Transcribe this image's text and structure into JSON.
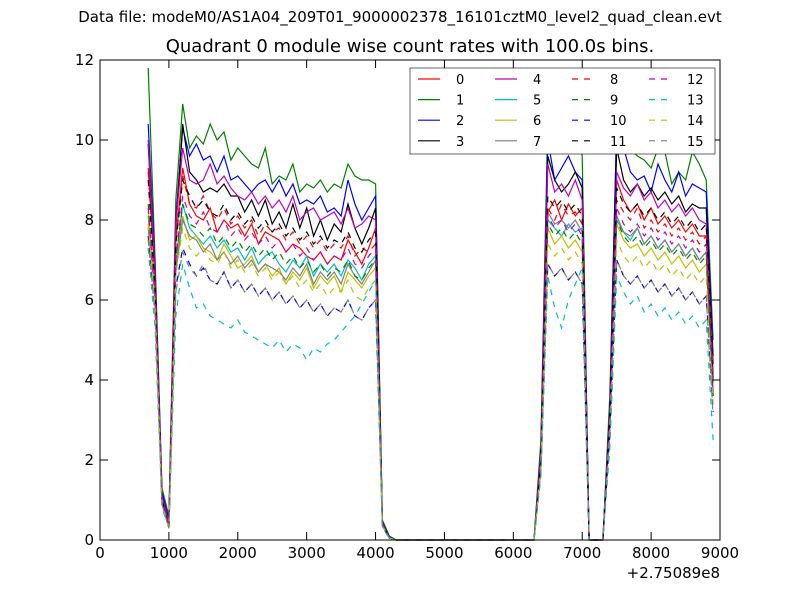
{
  "header": {
    "data_file": "Data file: modeM0/AS1A04_209T01_9000002378_16101cztM0_level2_quad_clean.evt",
    "title": "Quadrant 0 module wise count rates with 100.0s bins."
  },
  "chart_data": {
    "type": "line",
    "title": "Quadrant 0 module wise count rates with 100.0s bins.",
    "xlabel": "",
    "ylabel": "",
    "xlim": [
      0,
      9000
    ],
    "ylim": [
      0,
      12
    ],
    "x_offset_label": "+2.75089e8",
    "xticks": [
      "0",
      "1000",
      "2000",
      "3000",
      "4000",
      "5000",
      "6000",
      "7000",
      "8000",
      "9000"
    ],
    "yticks": [
      "0",
      "2",
      "4",
      "6",
      "8",
      "10",
      "12"
    ],
    "grid": false,
    "legend_position": "top-right",
    "x": [
      700,
      800,
      900,
      1000,
      1100,
      1200,
      1300,
      1400,
      1500,
      1600,
      1700,
      1800,
      1900,
      2000,
      2100,
      2200,
      2300,
      2400,
      2500,
      2600,
      2700,
      2800,
      2900,
      3000,
      3100,
      3200,
      3300,
      3400,
      3500,
      3600,
      3700,
      3800,
      3900,
      4000,
      4100,
      4200,
      4300,
      4400,
      4500,
      6300,
      6400,
      6500,
      6600,
      6700,
      6800,
      6900,
      7000,
      7100,
      7300,
      7400,
      7500,
      7600,
      7700,
      7800,
      7900,
      8000,
      8100,
      8200,
      8300,
      8400,
      8500,
      8600,
      8700,
      8800,
      8900
    ],
    "series": [
      {
        "name": "0",
        "color": "#ff0000",
        "dash": "solid",
        "values": [
          9.3,
          6.5,
          1.0,
          0.3,
          7.5,
          9.3,
          8.4,
          8.1,
          8.0,
          8.3,
          7.7,
          8.0,
          7.8,
          7.9,
          7.6,
          7.9,
          7.4,
          7.7,
          7.6,
          7.5,
          7.2,
          7.4,
          7.3,
          7.1,
          7.0,
          7.2,
          6.9,
          7.1,
          7.0,
          7.5,
          7.2,
          6.9,
          7.3,
          7.8,
          0.4,
          0.05,
          0.0,
          0.0,
          0.0,
          0.0,
          2.0,
          8.2,
          8.5,
          8.0,
          8.4,
          8.1,
          8.3,
          0.0,
          0.0,
          3.0,
          9.0,
          8.5,
          8.2,
          8.4,
          8.0,
          8.3,
          7.9,
          8.1,
          7.8,
          8.0,
          7.7,
          7.9,
          7.6,
          7.6,
          4.0
        ]
      },
      {
        "name": "1",
        "color": "#008000",
        "dash": "solid",
        "values": [
          11.8,
          7.0,
          1.3,
          0.6,
          8.5,
          10.9,
          9.8,
          10.1,
          9.9,
          10.4,
          10.0,
          10.2,
          9.5,
          9.8,
          9.6,
          9.4,
          9.3,
          9.8,
          8.9,
          9.1,
          9.0,
          9.4,
          8.7,
          8.9,
          8.8,
          9.0,
          8.7,
          8.9,
          8.8,
          9.4,
          9.1,
          9.0,
          9.0,
          8.9,
          0.5,
          0.1,
          0.0,
          0.0,
          0.0,
          0.0,
          2.5,
          10.5,
          9.7,
          9.9,
          10.2,
          10.4,
          9.6,
          0.0,
          0.0,
          3.6,
          10.3,
          10.2,
          9.8,
          9.6,
          9.5,
          9.3,
          9.8,
          9.7,
          8.9,
          9.2,
          9.0,
          9.7,
          9.4,
          9.0,
          5.0
        ]
      },
      {
        "name": "2",
        "color": "#0000ff",
        "dash": "solid",
        "values": [
          10.4,
          6.8,
          1.2,
          0.5,
          8.0,
          10.3,
          9.6,
          9.9,
          9.5,
          9.6,
          9.2,
          9.6,
          9.0,
          9.1,
          8.9,
          8.7,
          8.9,
          9.0,
          8.7,
          9.0,
          8.6,
          8.9,
          8.4,
          8.5,
          8.4,
          8.6,
          8.2,
          8.3,
          8.1,
          9.0,
          8.4,
          8.0,
          8.3,
          8.6,
          0.45,
          0.08,
          0.0,
          0.0,
          0.0,
          0.0,
          2.3,
          10.0,
          9.0,
          9.3,
          9.6,
          9.2,
          9.0,
          0.0,
          0.0,
          3.3,
          10.4,
          9.8,
          9.2,
          9.0,
          9.1,
          8.7,
          9.4,
          9.0,
          8.7,
          9.2,
          8.6,
          8.9,
          8.8,
          8.7,
          4.6
        ]
      },
      {
        "name": "3",
        "color": "#000000",
        "dash": "solid",
        "values": [
          9.9,
          6.6,
          1.1,
          0.4,
          7.8,
          10.4,
          9.2,
          9.0,
          8.7,
          8.8,
          8.7,
          8.9,
          8.6,
          8.6,
          8.2,
          8.5,
          8.1,
          8.5,
          7.9,
          8.2,
          7.8,
          8.4,
          7.8,
          8.3,
          7.6,
          8.0,
          7.5,
          7.9,
          7.7,
          8.4,
          7.8,
          7.4,
          7.8,
          8.3,
          0.42,
          0.06,
          0.0,
          0.0,
          0.0,
          0.0,
          2.2,
          9.6,
          9.0,
          8.7,
          8.9,
          9.2,
          8.8,
          0.0,
          0.0,
          3.2,
          9.8,
          9.0,
          8.7,
          8.9,
          8.6,
          8.8,
          8.5,
          8.7,
          8.4,
          8.6,
          8.2,
          8.4,
          8.3,
          8.3,
          4.4
        ]
      },
      {
        "name": "4",
        "color": "#bf00bf",
        "dash": "solid",
        "values": [
          10.0,
          6.6,
          1.1,
          0.4,
          7.9,
          9.8,
          9.0,
          8.9,
          9.0,
          9.4,
          8.9,
          9.1,
          8.8,
          8.6,
          8.5,
          8.7,
          8.4,
          8.6,
          8.3,
          8.5,
          8.2,
          8.6,
          8.0,
          8.2,
          8.3,
          8.0,
          8.1,
          8.2,
          7.9,
          8.3,
          7.8,
          7.9,
          8.1,
          8.0,
          0.42,
          0.06,
          0.0,
          0.0,
          0.0,
          0.0,
          2.2,
          9.4,
          8.7,
          8.9,
          8.6,
          9.0,
          8.5,
          0.0,
          0.0,
          3.2,
          9.2,
          8.8,
          8.6,
          8.9,
          8.5,
          8.7,
          8.3,
          8.5,
          8.2,
          8.4,
          8.1,
          8.3,
          8.0,
          7.9,
          4.2
        ]
      },
      {
        "name": "5",
        "color": "#00bfbf",
        "dash": "solid",
        "values": [
          8.1,
          6.0,
          0.9,
          0.3,
          6.9,
          8.4,
          7.8,
          7.6,
          7.4,
          7.6,
          7.3,
          7.5,
          7.2,
          7.3,
          7.0,
          7.3,
          6.9,
          7.1,
          7.2,
          6.9,
          6.7,
          7.0,
          6.8,
          7.1,
          6.6,
          6.9,
          6.7,
          6.9,
          6.6,
          7.0,
          6.8,
          6.5,
          6.9,
          7.1,
          0.38,
          0.05,
          0.0,
          0.0,
          0.0,
          0.0,
          1.9,
          8.0,
          7.8,
          7.6,
          7.9,
          7.7,
          7.8,
          0.0,
          0.0,
          2.9,
          8.0,
          7.7,
          7.5,
          7.8,
          7.4,
          7.6,
          7.3,
          7.5,
          7.2,
          7.4,
          7.1,
          7.3,
          7.0,
          7.2,
          3.6
        ]
      },
      {
        "name": "6",
        "color": "#bfbf00",
        "dash": "solid",
        "values": [
          8.2,
          6.0,
          0.9,
          0.3,
          6.8,
          8.1,
          7.5,
          7.6,
          7.3,
          7.2,
          7.0,
          7.4,
          7.1,
          6.8,
          6.9,
          7.1,
          6.7,
          6.9,
          6.6,
          6.8,
          6.4,
          6.7,
          6.5,
          6.8,
          6.3,
          6.6,
          6.4,
          6.6,
          6.2,
          6.7,
          6.5,
          6.3,
          6.6,
          6.8,
          0.36,
          0.05,
          0.0,
          0.0,
          0.0,
          0.0,
          1.9,
          7.8,
          7.4,
          7.6,
          7.3,
          7.5,
          7.2,
          0.0,
          0.0,
          2.8,
          7.9,
          7.5,
          7.3,
          7.4,
          7.1,
          7.3,
          7.0,
          7.2,
          6.9,
          7.1,
          6.8,
          7.0,
          6.7,
          6.9,
          3.6
        ]
      },
      {
        "name": "7",
        "color": "#7f7f7f",
        "dash": "solid",
        "values": [
          7.8,
          6.0,
          0.9,
          0.3,
          6.7,
          8.0,
          7.6,
          7.5,
          7.2,
          7.4,
          7.0,
          7.2,
          6.9,
          7.1,
          6.8,
          7.0,
          6.7,
          6.9,
          6.8,
          6.7,
          6.5,
          6.8,
          6.6,
          6.9,
          6.4,
          6.7,
          6.5,
          6.7,
          6.4,
          6.9,
          6.6,
          6.4,
          6.7,
          7.0,
          0.37,
          0.05,
          0.0,
          0.0,
          0.0,
          0.0,
          1.9,
          8.2,
          7.9,
          8.0,
          7.8,
          8.0,
          7.7,
          0.0,
          0.0,
          2.9,
          8.1,
          7.7,
          7.6,
          7.8,
          7.4,
          7.6,
          7.3,
          7.5,
          7.2,
          7.4,
          7.1,
          7.3,
          7.0,
          7.2,
          3.7
        ]
      },
      {
        "name": "8",
        "color": "#ff0000",
        "dash": "dashed",
        "values": [
          9.2,
          6.4,
          1.0,
          0.3,
          7.4,
          9.1,
          8.4,
          8.3,
          8.6,
          8.2,
          8.0,
          8.3,
          7.9,
          8.1,
          7.8,
          8.0,
          7.6,
          7.9,
          7.7,
          7.8,
          7.5,
          7.7,
          7.4,
          7.6,
          7.3,
          7.5,
          7.2,
          7.4,
          7.3,
          7.6,
          7.1,
          7.3,
          7.2,
          7.4,
          0.4,
          0.05,
          0.0,
          0.0,
          0.0,
          0.0,
          2.0,
          8.3,
          8.0,
          8.4,
          8.1,
          8.2,
          7.9,
          0.0,
          0.0,
          3.0,
          8.5,
          8.2,
          8.0,
          8.3,
          7.8,
          8.0,
          7.7,
          7.9,
          7.6,
          7.8,
          7.5,
          7.7,
          7.4,
          7.6,
          3.9
        ]
      },
      {
        "name": "9",
        "color": "#008000",
        "dash": "dashed",
        "values": [
          8.4,
          6.1,
          1.0,
          0.3,
          7.0,
          8.4,
          7.9,
          7.8,
          7.6,
          7.8,
          7.4,
          7.6,
          7.3,
          7.5,
          7.2,
          7.4,
          7.1,
          7.3,
          7.0,
          7.2,
          6.9,
          7.1,
          6.8,
          7.0,
          6.7,
          6.9,
          6.6,
          6.8,
          6.7,
          7.0,
          6.6,
          6.5,
          6.8,
          7.0,
          0.38,
          0.05,
          0.0,
          0.0,
          0.0,
          0.0,
          1.9,
          7.9,
          7.6,
          7.8,
          7.5,
          7.7,
          7.4,
          0.0,
          0.0,
          2.9,
          8.0,
          7.6,
          7.4,
          7.6,
          7.3,
          7.5,
          7.2,
          7.4,
          7.1,
          7.3,
          7.0,
          7.2,
          6.9,
          7.1,
          3.6
        ]
      },
      {
        "name": "10",
        "color": "#0000ff",
        "dash": "dashed",
        "values": [
          7.6,
          5.7,
          0.9,
          0.3,
          6.3,
          7.3,
          6.9,
          6.6,
          6.8,
          6.5,
          6.4,
          6.7,
          6.3,
          6.5,
          6.2,
          6.4,
          6.1,
          6.3,
          6.0,
          6.2,
          5.9,
          6.1,
          5.8,
          6.0,
          5.7,
          5.9,
          5.6,
          5.8,
          5.7,
          6.0,
          5.6,
          5.5,
          5.8,
          6.0,
          0.34,
          0.05,
          0.0,
          0.0,
          0.0,
          0.0,
          1.7,
          6.9,
          6.6,
          6.8,
          6.5,
          6.7,
          6.4,
          0.0,
          0.0,
          2.6,
          7.0,
          6.6,
          6.4,
          6.6,
          6.3,
          6.5,
          6.2,
          6.4,
          6.1,
          6.3,
          6.0,
          6.2,
          5.9,
          6.1,
          3.2
        ]
      },
      {
        "name": "11",
        "color": "#000000",
        "dash": "dashed",
        "values": [
          9.0,
          6.3,
          1.0,
          0.3,
          7.4,
          9.0,
          8.6,
          8.3,
          8.5,
          8.2,
          8.1,
          8.4,
          8.0,
          8.2,
          7.9,
          8.1,
          7.8,
          8.0,
          7.7,
          7.9,
          7.6,
          7.8,
          7.5,
          7.7,
          7.4,
          7.6,
          7.3,
          7.5,
          7.4,
          7.7,
          7.3,
          7.2,
          7.5,
          7.7,
          0.4,
          0.05,
          0.0,
          0.0,
          0.0,
          0.0,
          2.0,
          8.6,
          8.3,
          8.5,
          8.2,
          8.4,
          8.1,
          0.0,
          0.0,
          3.1,
          8.8,
          8.4,
          8.2,
          8.4,
          8.1,
          8.3,
          8.0,
          8.2,
          7.9,
          8.1,
          7.8,
          8.0,
          7.7,
          7.9,
          4.0
        ]
      },
      {
        "name": "12",
        "color": "#bf00bf",
        "dash": "dashed",
        "values": [
          8.3,
          6.1,
          1.0,
          0.3,
          7.0,
          8.6,
          8.1,
          7.9,
          8.2,
          7.8,
          7.7,
          8.0,
          7.6,
          7.8,
          7.5,
          7.7,
          7.4,
          7.6,
          7.3,
          7.5,
          7.2,
          7.4,
          7.1,
          7.3,
          7.0,
          7.2,
          6.9,
          7.1,
          7.0,
          7.3,
          6.9,
          6.8,
          7.1,
          7.3,
          0.39,
          0.05,
          0.0,
          0.0,
          0.0,
          0.0,
          1.9,
          8.1,
          7.8,
          8.0,
          7.7,
          7.9,
          7.6,
          0.0,
          0.0,
          2.9,
          8.3,
          7.9,
          7.7,
          7.9,
          7.6,
          7.8,
          7.5,
          7.7,
          7.4,
          7.6,
          7.3,
          7.5,
          7.2,
          7.4,
          3.7
        ]
      },
      {
        "name": "13",
        "color": "#00bfbf",
        "dash": "dashed",
        "values": [
          7.3,
          5.3,
          0.8,
          0.3,
          5.6,
          6.9,
          6.3,
          5.8,
          5.9,
          5.6,
          5.5,
          5.4,
          5.3,
          5.5,
          5.2,
          5.1,
          5.0,
          4.9,
          4.8,
          5.0,
          4.7,
          4.9,
          4.8,
          4.5,
          4.8,
          4.7,
          4.9,
          5.0,
          5.2,
          5.4,
          5.6,
          5.9,
          6.2,
          6.5,
          0.32,
          0.04,
          0.0,
          0.0,
          0.0,
          0.0,
          1.6,
          6.6,
          5.8,
          5.3,
          6.0,
          6.4,
          6.8,
          0.0,
          0.0,
          2.3,
          6.6,
          6.2,
          5.9,
          6.1,
          5.7,
          5.9,
          5.6,
          5.8,
          5.5,
          5.7,
          5.4,
          5.6,
          5.3,
          5.5,
          2.5
        ]
      },
      {
        "name": "14",
        "color": "#bfbf00",
        "dash": "dashed",
        "values": [
          7.9,
          5.8,
          0.9,
          0.3,
          6.6,
          7.8,
          7.3,
          7.1,
          7.3,
          7.0,
          6.9,
          7.2,
          6.8,
          7.0,
          6.7,
          6.9,
          6.6,
          6.8,
          6.5,
          6.7,
          6.4,
          6.6,
          6.3,
          6.5,
          6.2,
          6.4,
          6.1,
          6.3,
          6.2,
          6.5,
          6.1,
          6.0,
          6.3,
          6.5,
          0.35,
          0.05,
          0.0,
          0.0,
          0.0,
          0.0,
          1.8,
          7.4,
          7.1,
          7.3,
          7.0,
          7.2,
          6.9,
          0.0,
          0.0,
          2.7,
          7.5,
          7.1,
          6.9,
          7.1,
          6.8,
          7.0,
          6.7,
          6.9,
          6.6,
          6.8,
          6.5,
          6.7,
          6.4,
          6.6,
          3.4
        ]
      },
      {
        "name": "15",
        "color": "#7f7f7f",
        "dash": "dashed",
        "values": [
          7.5,
          5.6,
          0.9,
          0.3,
          6.2,
          7.2,
          6.8,
          6.6,
          6.9,
          6.5,
          6.4,
          6.7,
          6.3,
          6.5,
          6.2,
          6.4,
          6.1,
          6.3,
          6.0,
          6.2,
          5.9,
          6.1,
          5.8,
          6.0,
          5.7,
          5.9,
          5.6,
          5.8,
          5.7,
          6.0,
          5.6,
          5.5,
          5.8,
          6.0,
          0.34,
          0.05,
          0.0,
          0.0,
          0.0,
          0.0,
          1.7,
          6.9,
          6.6,
          6.8,
          6.5,
          6.7,
          6.4,
          0.0,
          0.0,
          2.6,
          7.0,
          6.6,
          6.4,
          6.6,
          6.3,
          6.5,
          6.2,
          6.4,
          6.1,
          6.3,
          6.0,
          6.2,
          5.9,
          6.1,
          3.1
        ]
      }
    ]
  }
}
